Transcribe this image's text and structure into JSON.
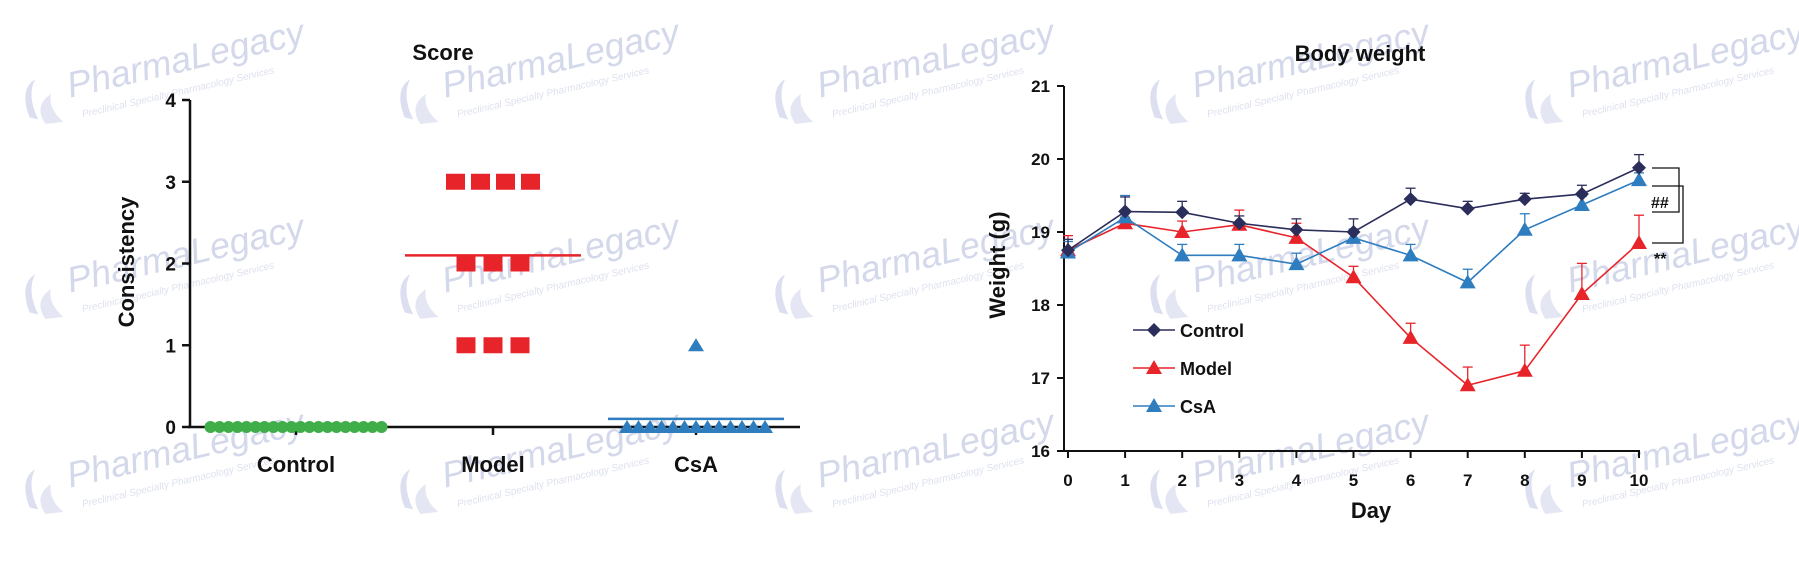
{
  "watermark": {
    "brand": "PharmaLegacy",
    "tagline": "Preclinical Specialty Pharmacology Services"
  },
  "chart_data": [
    {
      "type": "scatter",
      "title": "Score",
      "xlabel": "",
      "ylabel": "Consistency",
      "ylim": [
        0,
        4
      ],
      "yticks": [
        0,
        1,
        2,
        3,
        4
      ],
      "categories": [
        "Control",
        "Model",
        "CsA"
      ],
      "groups": [
        {
          "name": "Control",
          "color": "#3fae49",
          "marker": "circle",
          "points": [
            0,
            0,
            0,
            0,
            0,
            0,
            0,
            0,
            0,
            0,
            0,
            0,
            0,
            0,
            0,
            0,
            0,
            0,
            0,
            0
          ],
          "mean": 0
        },
        {
          "name": "Model",
          "color": "#e8242b",
          "marker": "square",
          "points": [
            3,
            3,
            3,
            3,
            2,
            2,
            2,
            1,
            1,
            1
          ],
          "mean": 2.1
        },
        {
          "name": "CsA",
          "color": "#2e7dbf",
          "marker": "triangle",
          "points": [
            1,
            0,
            0,
            0,
            0,
            0,
            0,
            0,
            0,
            0,
            0,
            0,
            0,
            0
          ],
          "mean": 0.1
        }
      ]
    },
    {
      "type": "line",
      "title": "Body weight",
      "xlabel": "Day",
      "ylabel": "Weight (g)",
      "xlim": [
        0,
        10
      ],
      "ylim": [
        16,
        21
      ],
      "x": [
        0,
        1,
        2,
        3,
        4,
        5,
        6,
        7,
        8,
        9,
        10
      ],
      "yticks": [
        16,
        17,
        18,
        19,
        20,
        21
      ],
      "series": [
        {
          "name": "Control",
          "color": "#2b2d5a",
          "marker": "diamond",
          "values": [
            18.75,
            19.28,
            19.27,
            19.12,
            19.03,
            19.0,
            19.45,
            19.32,
            19.45,
            19.52,
            19.88
          ],
          "errors": [
            0.15,
            0.2,
            0.15,
            0.1,
            0.15,
            0.18,
            0.15,
            0.1,
            0.08,
            0.12,
            0.18
          ]
        },
        {
          "name": "Model",
          "color": "#e8242b",
          "marker": "triangle",
          "values": [
            18.75,
            19.12,
            19.0,
            19.1,
            18.92,
            18.38,
            17.55,
            16.9,
            17.1,
            18.15,
            18.85
          ],
          "errors": [
            0.2,
            0.08,
            0.15,
            0.2,
            0.2,
            0.15,
            0.2,
            0.25,
            0.35,
            0.42,
            0.38
          ]
        },
        {
          "name": "CsA",
          "color": "#2e7dbf",
          "marker": "triangle",
          "values": [
            18.72,
            19.2,
            18.68,
            18.68,
            18.56,
            18.92,
            18.68,
            18.31,
            19.03,
            19.37,
            19.71
          ],
          "errors": [
            0.15,
            0.3,
            0.15,
            0.15,
            0.15,
            0.12,
            0.15,
            0.18,
            0.22,
            0.12,
            0.1
          ]
        }
      ],
      "legend": [
        "Control",
        "Model",
        "CsA"
      ],
      "annotations": [
        "##",
        "**"
      ]
    }
  ]
}
